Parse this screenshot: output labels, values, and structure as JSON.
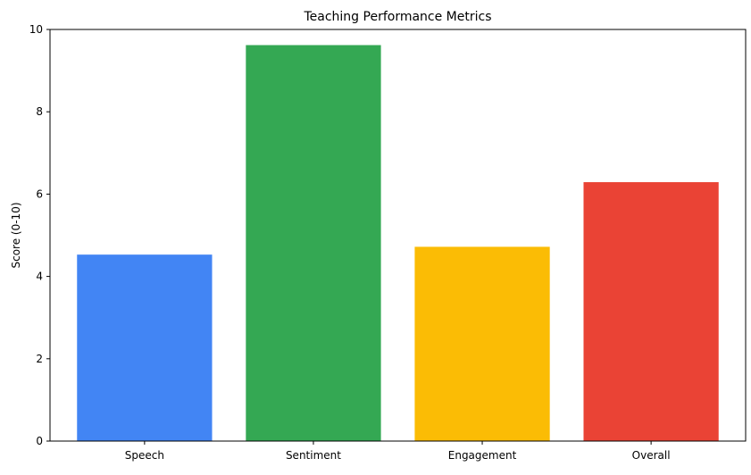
{
  "chart_data": {
    "type": "bar",
    "title": "Teaching Performance Metrics",
    "xlabel": "",
    "ylabel": "Score (0-10)",
    "ylim": [
      0,
      10
    ],
    "yticks": [
      0,
      2,
      4,
      6,
      8,
      10
    ],
    "categories": [
      "Speech",
      "Sentiment",
      "Engagement",
      "Overall"
    ],
    "values": [
      4.53,
      9.62,
      4.72,
      6.29
    ],
    "colors": [
      "#4285F4",
      "#34A853",
      "#FBBC05",
      "#EA4335"
    ],
    "grid": false,
    "legend": "none"
  }
}
